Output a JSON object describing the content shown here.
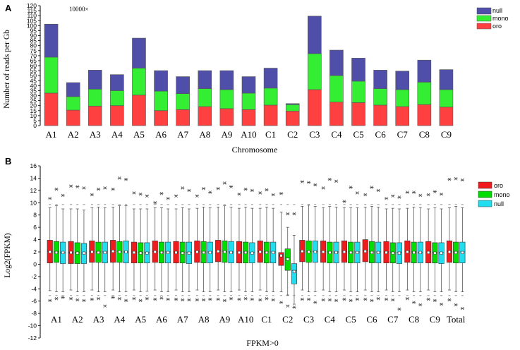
{
  "colors": {
    "oro": "#ff4040",
    "mono": "#33ee33",
    "null": "#4f4faa",
    "oroB": "#ee1c1c",
    "monoB": "#00dd00",
    "nullB": "#22ddee"
  },
  "chart_data": [
    {
      "panel": "A",
      "type": "bar",
      "stacked": true,
      "multiplier_label": "10000×",
      "ylabel": "Number of reads per Gb",
      "xlabel": "Chromosome",
      "ylim": [
        0,
        120
      ],
      "yticks": [
        0,
        5,
        10,
        15,
        20,
        25,
        30,
        35,
        40,
        45,
        50,
        55,
        60,
        65,
        70,
        75,
        80,
        85,
        90,
        95,
        100,
        105,
        110,
        115,
        120
      ],
      "categories": [
        "A1",
        "A2",
        "A3",
        "A4",
        "A5",
        "A6",
        "A7",
        "A8",
        "A9",
        "A10",
        "C1",
        "C2",
        "C3",
        "C4",
        "C5",
        "C6",
        "C7",
        "C8",
        "C9"
      ],
      "legend": [
        "null",
        "mono",
        "oro"
      ],
      "series": [
        {
          "name": "oro",
          "values": [
            32.5,
            15.5,
            19.5,
            20,
            30.5,
            15,
            16,
            19,
            17,
            16,
            20.5,
            14.5,
            36,
            23.5,
            23,
            20.5,
            19,
            21,
            18.5
          ]
        },
        {
          "name": "mono",
          "values": [
            36,
            13.5,
            17,
            15,
            27,
            19.5,
            16,
            18,
            19,
            16.5,
            17,
            6.5,
            36,
            26.5,
            21.5,
            16.5,
            17,
            22.5,
            17.5
          ]
        },
        {
          "name": "null",
          "values": [
            33,
            14,
            19,
            16,
            30,
            20.5,
            17,
            18,
            19,
            16.5,
            20,
            1,
            37.5,
            25.5,
            23,
            18.5,
            18.5,
            22,
            20
          ]
        }
      ]
    },
    {
      "panel": "B",
      "type": "box",
      "ylabel": "Log2(FPKM)",
      "xlabel": "FPKM>0",
      "ylim": [
        -12,
        16
      ],
      "yticks": [
        -12,
        -10,
        -8,
        -6,
        -4,
        -2,
        0,
        2,
        4,
        6,
        8,
        10,
        12,
        14,
        16
      ],
      "categories": [
        "A1",
        "A2",
        "A3",
        "A4",
        "A5",
        "A6",
        "A7",
        "A8",
        "A9",
        "A10",
        "C1",
        "C2",
        "C3",
        "C4",
        "C5",
        "C6",
        "C7",
        "C8",
        "C9",
        "Total"
      ],
      "legend": [
        "oro",
        "mono",
        "null"
      ],
      "groups": [
        [
          {
            "q1": 0.2,
            "med": 2.1,
            "q3": 3.9,
            "lo": -4.3,
            "hi": 9.2,
            "mean": 2.0,
            "out": [
              10.7,
              -5.9
            ]
          },
          {
            "q1": 0.3,
            "med": 2.0,
            "q3": 3.7,
            "lo": -4.5,
            "hi": 9.5,
            "mean": 1.9,
            "out": [
              12.2,
              -5.6
            ]
          },
          {
            "q1": 0.1,
            "med": 1.9,
            "q3": 3.6,
            "lo": -4.5,
            "hi": 9.0,
            "mean": 1.9,
            "out": [
              11.2,
              -5.4
            ]
          }
        ],
        [
          {
            "q1": 0.1,
            "med": 1.9,
            "q3": 3.7,
            "lo": -4.2,
            "hi": 9.0,
            "mean": 1.9,
            "out": [
              12.7,
              -5.6
            ]
          },
          {
            "q1": 0.1,
            "med": 1.9,
            "q3": 3.5,
            "lo": -4.5,
            "hi": 9.0,
            "mean": 1.8,
            "out": [
              12.6,
              -5.8
            ]
          },
          {
            "q1": 0.1,
            "med": 1.8,
            "q3": 3.4,
            "lo": -4.5,
            "hi": 8.8,
            "mean": 1.8,
            "out": [
              12.4,
              -5.9
            ]
          }
        ],
        [
          {
            "q1": 0.3,
            "med": 2.1,
            "q3": 3.8,
            "lo": -4.2,
            "hi": 9.2,
            "mean": 2.0,
            "out": [
              11.3,
              -5.7
            ]
          },
          {
            "q1": 0.3,
            "med": 2.0,
            "q3": 3.6,
            "lo": -4.5,
            "hi": 9.3,
            "mean": 1.9,
            "out": [
              12.2,
              -5.6
            ]
          },
          {
            "q1": 0.2,
            "med": 2.0,
            "q3": 3.6,
            "lo": -4.5,
            "hi": 9.2,
            "mean": 1.9,
            "out": [
              12.4,
              -6.8
            ]
          }
        ],
        [
          {
            "q1": 0.3,
            "med": 2.2,
            "q3": 3.9,
            "lo": -4.2,
            "hi": 9.3,
            "mean": 2.1,
            "out": [
              12.2,
              -5.4
            ]
          },
          {
            "q1": 0.3,
            "med": 2.1,
            "q3": 3.7,
            "lo": -4.5,
            "hi": 9.5,
            "mean": 2.0,
            "out": [
              14.0,
              -5.6
            ]
          },
          {
            "q1": 0.2,
            "med": 2.0,
            "q3": 3.8,
            "lo": -4.5,
            "hi": 9.5,
            "mean": 2.0,
            "out": [
              13.8,
              -5.9
            ]
          }
        ],
        [
          {
            "q1": 0.2,
            "med": 2.0,
            "q3": 3.6,
            "lo": -4.2,
            "hi": 9.0,
            "mean": 1.9,
            "out": [
              11.6,
              -5.6
            ]
          },
          {
            "q1": 0.2,
            "med": 1.9,
            "q3": 3.5,
            "lo": -4.5,
            "hi": 9.0,
            "mean": 1.8,
            "out": [
              11.4,
              -5.9
            ]
          },
          {
            "q1": 0.2,
            "med": 1.9,
            "q3": 3.5,
            "lo": -4.4,
            "hi": 9.0,
            "mean": 1.8,
            "out": [
              11.1,
              -5.6
            ]
          }
        ],
        [
          {
            "q1": 0.3,
            "med": 2.1,
            "q3": 3.8,
            "lo": -4.2,
            "hi": 9.2,
            "mean": 2.0,
            "out": [
              10.0,
              -5.7
            ]
          },
          {
            "q1": 0.2,
            "med": 2.0,
            "q3": 3.6,
            "lo": -4.5,
            "hi": 9.2,
            "mean": 1.9,
            "out": [
              11.5,
              -5.5
            ]
          },
          {
            "q1": 0.2,
            "med": 2.0,
            "q3": 3.6,
            "lo": -4.5,
            "hi": 9.0,
            "mean": 1.9,
            "out": [
              10.7,
              -5.7
            ]
          }
        ],
        [
          {
            "q1": 0.2,
            "med": 2.0,
            "q3": 3.7,
            "lo": -4.2,
            "hi": 9.0,
            "mean": 1.9,
            "out": [
              11.1,
              -5.7
            ]
          },
          {
            "q1": 0.2,
            "med": 1.9,
            "q3": 3.6,
            "lo": -4.5,
            "hi": 9.2,
            "mean": 1.8,
            "out": [
              12.4,
              -5.8
            ]
          },
          {
            "q1": 0.1,
            "med": 1.9,
            "q3": 3.6,
            "lo": -4.5,
            "hi": 9.0,
            "mean": 1.8,
            "out": [
              12.0,
              -5.8
            ]
          }
        ],
        [
          {
            "q1": 0.3,
            "med": 2.1,
            "q3": 3.8,
            "lo": -4.2,
            "hi": 9.1,
            "mean": 2.0,
            "out": [
              11.1,
              -5.8
            ]
          },
          {
            "q1": 0.2,
            "med": 2.0,
            "q3": 3.7,
            "lo": -4.5,
            "hi": 9.3,
            "mean": 1.9,
            "out": [
              12.3,
              -5.8
            ]
          },
          {
            "q1": 0.2,
            "med": 2.0,
            "q3": 3.6,
            "lo": -4.5,
            "hi": 9.2,
            "mean": 1.9,
            "out": [
              11.7,
              -5.7
            ]
          }
        ],
        [
          {
            "q1": 0.4,
            "med": 2.2,
            "q3": 3.9,
            "lo": -4.2,
            "hi": 9.3,
            "mean": 2.1,
            "out": [
              12.3,
              -5.7
            ]
          },
          {
            "q1": 0.3,
            "med": 2.1,
            "q3": 3.8,
            "lo": -4.5,
            "hi": 9.5,
            "mean": 2.0,
            "out": [
              13.2,
              -5.9
            ]
          },
          {
            "q1": 0.2,
            "med": 2.0,
            "q3": 3.7,
            "lo": -4.5,
            "hi": 9.3,
            "mean": 1.9,
            "out": [
              12.6,
              -5.6
            ]
          }
        ],
        [
          {
            "q1": 0.2,
            "med": 2.0,
            "q3": 3.7,
            "lo": -4.2,
            "hi": 9.1,
            "mean": 1.9,
            "out": [
              11.4,
              -5.7
            ]
          },
          {
            "q1": 0.2,
            "med": 2.0,
            "q3": 3.6,
            "lo": -4.5,
            "hi": 9.3,
            "mean": 1.9,
            "out": [
              12.2,
              -5.6
            ]
          },
          {
            "q1": 0.2,
            "med": 1.9,
            "q3": 3.5,
            "lo": -4.5,
            "hi": 9.1,
            "mean": 1.8,
            "out": [
              12.0,
              -5.7
            ]
          }
        ],
        [
          {
            "q1": 0.3,
            "med": 2.1,
            "q3": 3.8,
            "lo": -4.2,
            "hi": 9.1,
            "mean": 2.0,
            "out": [
              11.6,
              -5.8
            ]
          },
          {
            "q1": 0.2,
            "med": 2.0,
            "q3": 3.6,
            "lo": -4.5,
            "hi": 9.3,
            "mean": 1.9,
            "out": [
              12.1,
              -5.6
            ]
          },
          {
            "q1": 0.2,
            "med": 2.0,
            "q3": 3.6,
            "lo": -4.5,
            "hi": 9.1,
            "mean": 1.9,
            "out": [
              11.3,
              -5.8
            ]
          }
        ],
        [
          {
            "q1": -0.2,
            "med": 1.5,
            "q3": 1.9,
            "lo": -4.5,
            "hi": 8.5,
            "mean": 1.4,
            "out": [
              11.5,
              -6.2
            ]
          },
          {
            "q1": -1.0,
            "med": 1.0,
            "q3": 2.5,
            "lo": -5.0,
            "hi": 6.0,
            "mean": 0.8,
            "out": [
              8.2,
              -6.8
            ]
          },
          {
            "q1": -3.2,
            "med": -1.0,
            "q3": 0.1,
            "lo": -6.5,
            "hi": 4.7,
            "mean": -1.2,
            "out": [
              8.2,
              -7.0
            ]
          }
        ],
        [
          {
            "q1": 0.4,
            "med": 2.2,
            "q3": 3.9,
            "lo": -4.2,
            "hi": 9.4,
            "mean": 2.1,
            "out": [
              13.4,
              -5.7
            ]
          },
          {
            "q1": 0.3,
            "med": 2.1,
            "q3": 3.8,
            "lo": -4.5,
            "hi": 9.6,
            "mean": 2.0,
            "out": [
              13.3,
              -5.7
            ]
          },
          {
            "q1": 0.3,
            "med": 2.1,
            "q3": 3.8,
            "lo": -4.5,
            "hi": 9.4,
            "mean": 2.0,
            "out": [
              12.9,
              -6.2
            ]
          }
        ],
        [
          {
            "q1": 0.3,
            "med": 2.1,
            "q3": 3.8,
            "lo": -4.2,
            "hi": 9.2,
            "mean": 2.0,
            "out": [
              12.4,
              -5.8
            ]
          },
          {
            "q1": 0.2,
            "med": 2.0,
            "q3": 3.6,
            "lo": -4.5,
            "hi": 9.4,
            "mean": 1.9,
            "out": [
              13.8,
              -5.8
            ]
          },
          {
            "q1": 0.2,
            "med": 2.0,
            "q3": 3.6,
            "lo": -4.5,
            "hi": 9.3,
            "mean": 1.9,
            "out": [
              13.5,
              -5.9
            ]
          }
        ],
        [
          {
            "q1": 0.3,
            "med": 2.1,
            "q3": 3.8,
            "lo": -4.2,
            "hi": 9.2,
            "mean": 2.0,
            "out": [
              10.2,
              -5.7
            ]
          },
          {
            "q1": 0.2,
            "med": 2.0,
            "q3": 3.6,
            "lo": -4.5,
            "hi": 9.2,
            "mean": 1.9,
            "out": [
              12.5,
              -5.9
            ]
          },
          {
            "q1": 0.2,
            "med": 2.0,
            "q3": 3.6,
            "lo": -4.5,
            "hi": 9.2,
            "mean": 1.9,
            "out": [
              11.6,
              -5.7
            ]
          }
        ],
        [
          {
            "q1": 0.4,
            "med": 2.2,
            "q3": 4.0,
            "lo": -4.2,
            "hi": 9.3,
            "mean": 2.1,
            "out": [
              11.3,
              -5.7
            ]
          },
          {
            "q1": 0.2,
            "med": 2.0,
            "q3": 3.7,
            "lo": -4.5,
            "hi": 9.4,
            "mean": 1.9,
            "out": [
              12.5,
              -5.9
            ]
          },
          {
            "q1": 0.2,
            "med": 2.0,
            "q3": 3.6,
            "lo": -4.5,
            "hi": 9.3,
            "mean": 1.9,
            "out": [
              12.0,
              -5.6
            ]
          }
        ],
        [
          {
            "q1": 0.2,
            "med": 2.0,
            "q3": 3.7,
            "lo": -4.2,
            "hi": 9.0,
            "mean": 1.9,
            "out": [
              10.7,
              -5.7
            ]
          },
          {
            "q1": 0.2,
            "med": 1.9,
            "q3": 3.5,
            "lo": -4.5,
            "hi": 9.1,
            "mean": 1.8,
            "out": [
              11.1,
              -5.8
            ]
          },
          {
            "q1": 0.1,
            "med": 1.9,
            "q3": 3.5,
            "lo": -4.5,
            "hi": 9.0,
            "mean": 1.8,
            "out": [
              10.9,
              -7.3
            ]
          }
        ],
        [
          {
            "q1": 0.3,
            "med": 2.1,
            "q3": 3.8,
            "lo": -4.2,
            "hi": 9.1,
            "mean": 2.0,
            "out": [
              11.7,
              -5.6
            ]
          },
          {
            "q1": 0.2,
            "med": 2.0,
            "q3": 3.6,
            "lo": -4.5,
            "hi": 9.3,
            "mean": 1.9,
            "out": [
              11.7,
              -6.2
            ]
          },
          {
            "q1": 0.2,
            "med": 1.9,
            "q3": 3.6,
            "lo": -4.5,
            "hi": 9.2,
            "mean": 1.9,
            "out": [
              11.2,
              -6.6
            ]
          }
        ],
        [
          {
            "q1": 0.2,
            "med": 2.0,
            "q3": 3.7,
            "lo": -4.2,
            "hi": 9.0,
            "mean": 1.9,
            "out": [
              11.3,
              -5.7
            ]
          },
          {
            "q1": 0.2,
            "med": 1.9,
            "q3": 3.5,
            "lo": -4.5,
            "hi": 9.2,
            "mean": 1.8,
            "out": [
              11.8,
              -5.9
            ]
          },
          {
            "q1": 0.1,
            "med": 1.9,
            "q3": 3.5,
            "lo": -4.5,
            "hi": 9.0,
            "mean": 1.8,
            "out": [
              11.4,
              -6.5
            ]
          }
        ],
        [
          {
            "q1": 0.3,
            "med": 2.1,
            "q3": 3.8,
            "lo": -4.2,
            "hi": 9.2,
            "mean": 2.0,
            "out": [
              13.8,
              -5.8
            ]
          },
          {
            "q1": 0.2,
            "med": 2.0,
            "q3": 3.6,
            "lo": -4.5,
            "hi": 9.4,
            "mean": 1.9,
            "out": [
              13.9,
              -6.6
            ]
          },
          {
            "q1": 0.2,
            "med": 2.0,
            "q3": 3.6,
            "lo": -4.5,
            "hi": 9.2,
            "mean": 1.9,
            "out": [
              13.7,
              -7.2
            ]
          }
        ]
      ]
    }
  ]
}
